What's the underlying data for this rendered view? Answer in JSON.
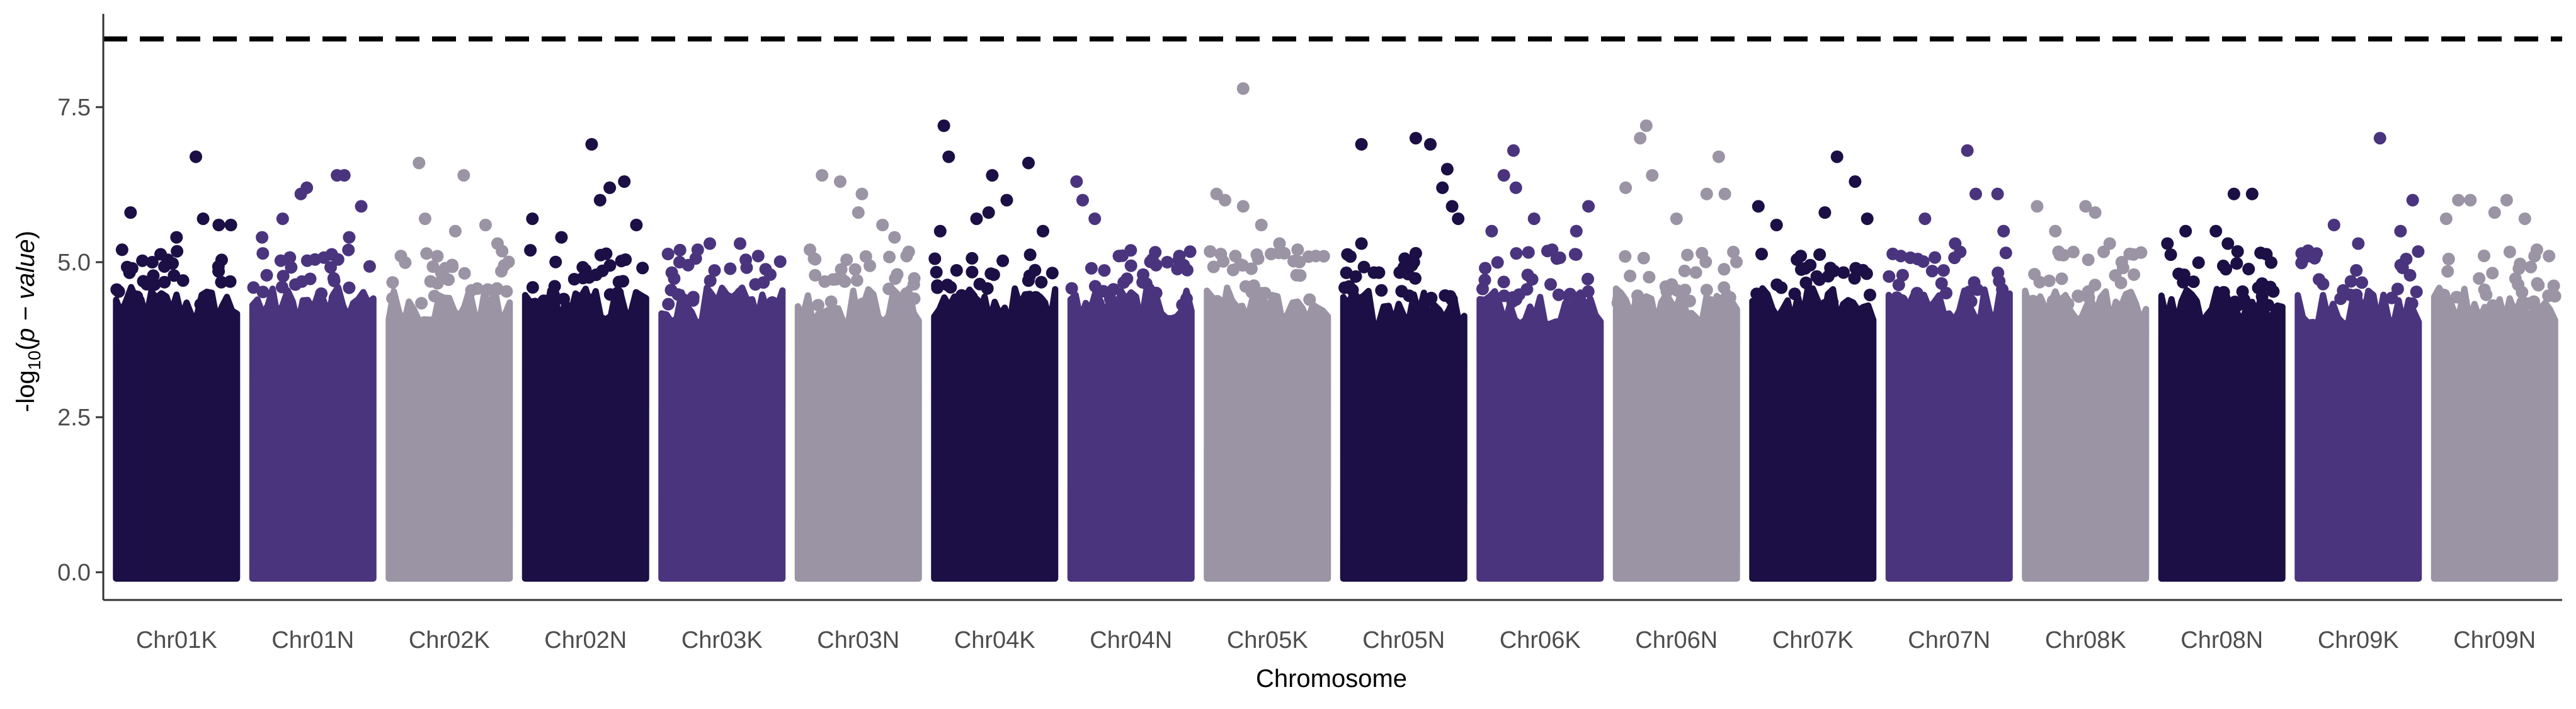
{
  "chart_data": {
    "type": "scatter",
    "subtype": "manhattan",
    "xlabel": "Chromosome",
    "ylabel": "-log10(p-value)",
    "ylabel_parts": {
      "prefix": "-log",
      "sub": "10",
      "open": "(",
      "var": "p − value",
      "close": ")"
    },
    "ylim": [
      -0.4,
      8.8
    ],
    "yticks": [
      0.0,
      2.5,
      5.0,
      7.5
    ],
    "ytick_labels": [
      "0.0",
      "2.5",
      "5.0",
      "7.5"
    ],
    "threshold": 8.6,
    "threshold_style": "dashed",
    "grid": false,
    "legend": "none",
    "colors": [
      "#1b0f45",
      "#4a347e",
      "#9a94a4"
    ],
    "categories": [
      "Chr01K",
      "Chr01N",
      "Chr02K",
      "Chr02N",
      "Chr03K",
      "Chr03N",
      "Chr04K",
      "Chr04N",
      "Chr05K",
      "Chr05N",
      "Chr06K",
      "Chr06N",
      "Chr07K",
      "Chr07N",
      "Chr08K",
      "Chr08N",
      "Chr09K",
      "Chr09N"
    ],
    "chromosomes": [
      {
        "name": "Chr01K",
        "color": "#1b0f45",
        "top_points": [
          {
            "pos": 0.05,
            "y": 5.2
          },
          {
            "pos": 0.12,
            "y": 5.8
          },
          {
            "pos": 0.3,
            "y": 5.0
          },
          {
            "pos": 0.5,
            "y": 5.4
          },
          {
            "pos": 0.66,
            "y": 6.7
          },
          {
            "pos": 0.72,
            "y": 5.7
          },
          {
            "pos": 0.85,
            "y": 5.6
          },
          {
            "pos": 0.95,
            "y": 5.6
          }
        ]
      },
      {
        "name": "Chr01N",
        "color": "#4a347e",
        "top_points": [
          {
            "pos": 0.08,
            "y": 5.4
          },
          {
            "pos": 0.25,
            "y": 5.7
          },
          {
            "pos": 0.4,
            "y": 6.1
          },
          {
            "pos": 0.45,
            "y": 6.2
          },
          {
            "pos": 0.7,
            "y": 6.4
          },
          {
            "pos": 0.76,
            "y": 6.4
          },
          {
            "pos": 0.8,
            "y": 5.4
          },
          {
            "pos": 0.9,
            "y": 5.9
          }
        ]
      },
      {
        "name": "Chr02K",
        "color": "#9a94a4",
        "top_points": [
          {
            "pos": 0.1,
            "y": 5.1
          },
          {
            "pos": 0.25,
            "y": 6.6
          },
          {
            "pos": 0.3,
            "y": 5.7
          },
          {
            "pos": 0.55,
            "y": 5.5
          },
          {
            "pos": 0.62,
            "y": 6.4
          },
          {
            "pos": 0.8,
            "y": 5.6
          },
          {
            "pos": 0.9,
            "y": 5.3
          }
        ]
      },
      {
        "name": "Chr02N",
        "color": "#1b0f45",
        "top_points": [
          {
            "pos": 0.06,
            "y": 5.7
          },
          {
            "pos": 0.3,
            "y": 5.4
          },
          {
            "pos": 0.55,
            "y": 6.9
          },
          {
            "pos": 0.62,
            "y": 6.0
          },
          {
            "pos": 0.7,
            "y": 6.2
          },
          {
            "pos": 0.82,
            "y": 6.3
          },
          {
            "pos": 0.92,
            "y": 5.6
          }
        ]
      },
      {
        "name": "Chr03K",
        "color": "#4a347e",
        "top_points": [
          {
            "pos": 0.15,
            "y": 5.0
          },
          {
            "pos": 0.3,
            "y": 5.2
          },
          {
            "pos": 0.4,
            "y": 5.3
          },
          {
            "pos": 0.65,
            "y": 5.3
          },
          {
            "pos": 0.8,
            "y": 5.1
          },
          {
            "pos": 0.9,
            "y": 4.8
          }
        ]
      },
      {
        "name": "Chr03N",
        "color": "#9a94a4",
        "top_points": [
          {
            "pos": 0.1,
            "y": 5.2
          },
          {
            "pos": 0.2,
            "y": 6.4
          },
          {
            "pos": 0.35,
            "y": 6.3
          },
          {
            "pos": 0.5,
            "y": 5.8
          },
          {
            "pos": 0.53,
            "y": 6.1
          },
          {
            "pos": 0.7,
            "y": 5.6
          },
          {
            "pos": 0.8,
            "y": 5.4
          },
          {
            "pos": 0.9,
            "y": 5.1
          }
        ]
      },
      {
        "name": "Chr04K",
        "color": "#1b0f45",
        "top_points": [
          {
            "pos": 0.05,
            "y": 5.5
          },
          {
            "pos": 0.08,
            "y": 7.2
          },
          {
            "pos": 0.12,
            "y": 6.7
          },
          {
            "pos": 0.35,
            "y": 5.7
          },
          {
            "pos": 0.45,
            "y": 5.8
          },
          {
            "pos": 0.48,
            "y": 6.4
          },
          {
            "pos": 0.6,
            "y": 6.0
          },
          {
            "pos": 0.78,
            "y": 6.6
          },
          {
            "pos": 0.9,
            "y": 5.5
          }
        ]
      },
      {
        "name": "Chr04N",
        "color": "#4a347e",
        "top_points": [
          {
            "pos": 0.05,
            "y": 6.3
          },
          {
            "pos": 0.1,
            "y": 6.0
          },
          {
            "pos": 0.2,
            "y": 5.7
          },
          {
            "pos": 0.4,
            "y": 5.1
          },
          {
            "pos": 0.6,
            "y": 4.8
          },
          {
            "pos": 0.8,
            "y": 5.0
          },
          {
            "pos": 0.9,
            "y": 5.1
          }
        ]
      },
      {
        "name": "Chr05K",
        "color": "#9a94a4",
        "top_points": [
          {
            "pos": 0.08,
            "y": 6.1
          },
          {
            "pos": 0.15,
            "y": 6.0
          },
          {
            "pos": 0.3,
            "y": 5.9
          },
          {
            "pos": 0.3,
            "y": 7.8
          },
          {
            "pos": 0.45,
            "y": 5.6
          },
          {
            "pos": 0.6,
            "y": 5.3
          },
          {
            "pos": 0.75,
            "y": 5.2
          },
          {
            "pos": 0.9,
            "y": 5.1
          }
        ]
      },
      {
        "name": "Chr05N",
        "color": "#1b0f45",
        "top_points": [
          {
            "pos": 0.15,
            "y": 5.3
          },
          {
            "pos": 0.15,
            "y": 6.9
          },
          {
            "pos": 0.6,
            "y": 7.0
          },
          {
            "pos": 0.72,
            "y": 6.9
          },
          {
            "pos": 0.82,
            "y": 6.2
          },
          {
            "pos": 0.86,
            "y": 6.5
          },
          {
            "pos": 0.9,
            "y": 5.9
          },
          {
            "pos": 0.95,
            "y": 5.7
          }
        ]
      },
      {
        "name": "Chr06K",
        "color": "#4a347e",
        "top_points": [
          {
            "pos": 0.1,
            "y": 5.5
          },
          {
            "pos": 0.2,
            "y": 6.4
          },
          {
            "pos": 0.28,
            "y": 6.8
          },
          {
            "pos": 0.3,
            "y": 6.2
          },
          {
            "pos": 0.45,
            "y": 5.7
          },
          {
            "pos": 0.6,
            "y": 5.2
          },
          {
            "pos": 0.8,
            "y": 5.5
          },
          {
            "pos": 0.9,
            "y": 5.9
          }
        ]
      },
      {
        "name": "Chr06N",
        "color": "#9a94a4",
        "top_points": [
          {
            "pos": 0.08,
            "y": 6.2
          },
          {
            "pos": 0.2,
            "y": 7.0
          },
          {
            "pos": 0.25,
            "y": 7.2
          },
          {
            "pos": 0.3,
            "y": 6.4
          },
          {
            "pos": 0.5,
            "y": 5.7
          },
          {
            "pos": 0.75,
            "y": 6.1
          },
          {
            "pos": 0.85,
            "y": 6.7
          },
          {
            "pos": 0.9,
            "y": 6.1
          }
        ]
      },
      {
        "name": "Chr07K",
        "color": "#1b0f45",
        "top_points": [
          {
            "pos": 0.05,
            "y": 5.9
          },
          {
            "pos": 0.2,
            "y": 5.6
          },
          {
            "pos": 0.4,
            "y": 5.1
          },
          {
            "pos": 0.6,
            "y": 5.8
          },
          {
            "pos": 0.7,
            "y": 6.7
          },
          {
            "pos": 0.85,
            "y": 6.3
          },
          {
            "pos": 0.95,
            "y": 5.7
          }
        ]
      },
      {
        "name": "Chr07N",
        "color": "#4a347e",
        "top_points": [
          {
            "pos": 0.1,
            "y": 5.1
          },
          {
            "pos": 0.3,
            "y": 5.7
          },
          {
            "pos": 0.55,
            "y": 5.3
          },
          {
            "pos": 0.65,
            "y": 6.8
          },
          {
            "pos": 0.72,
            "y": 6.1
          },
          {
            "pos": 0.9,
            "y": 6.1
          },
          {
            "pos": 0.95,
            "y": 5.5
          }
        ]
      },
      {
        "name": "Chr08K",
        "color": "#9a94a4",
        "top_points": [
          {
            "pos": 0.1,
            "y": 5.9
          },
          {
            "pos": 0.25,
            "y": 5.5
          },
          {
            "pos": 0.5,
            "y": 5.9
          },
          {
            "pos": 0.58,
            "y": 5.8
          },
          {
            "pos": 0.7,
            "y": 5.3
          },
          {
            "pos": 0.8,
            "y": 5.0
          },
          {
            "pos": 0.9,
            "y": 4.8
          }
        ]
      },
      {
        "name": "Chr08N",
        "color": "#1b0f45",
        "top_points": [
          {
            "pos": 0.05,
            "y": 5.3
          },
          {
            "pos": 0.2,
            "y": 5.5
          },
          {
            "pos": 0.45,
            "y": 5.5
          },
          {
            "pos": 0.55,
            "y": 5.3
          },
          {
            "pos": 0.6,
            "y": 6.1
          },
          {
            "pos": 0.75,
            "y": 6.1
          },
          {
            "pos": 0.9,
            "y": 4.6
          }
        ]
      },
      {
        "name": "Chr09K",
        "color": "#4a347e",
        "top_points": [
          {
            "pos": 0.1,
            "y": 5.1
          },
          {
            "pos": 0.3,
            "y": 5.6
          },
          {
            "pos": 0.5,
            "y": 5.3
          },
          {
            "pos": 0.68,
            "y": 7.0
          },
          {
            "pos": 0.85,
            "y": 5.5
          },
          {
            "pos": 0.95,
            "y": 6.0
          }
        ]
      },
      {
        "name": "Chr09N",
        "color": "#9a94a4",
        "top_points": [
          {
            "pos": 0.1,
            "y": 5.7
          },
          {
            "pos": 0.2,
            "y": 6.0
          },
          {
            "pos": 0.3,
            "y": 6.0
          },
          {
            "pos": 0.5,
            "y": 5.8
          },
          {
            "pos": 0.6,
            "y": 6.0
          },
          {
            "pos": 0.75,
            "y": 5.7
          },
          {
            "pos": 0.85,
            "y": 5.2
          },
          {
            "pos": 0.95,
            "y": 5.1
          }
        ]
      }
    ]
  }
}
